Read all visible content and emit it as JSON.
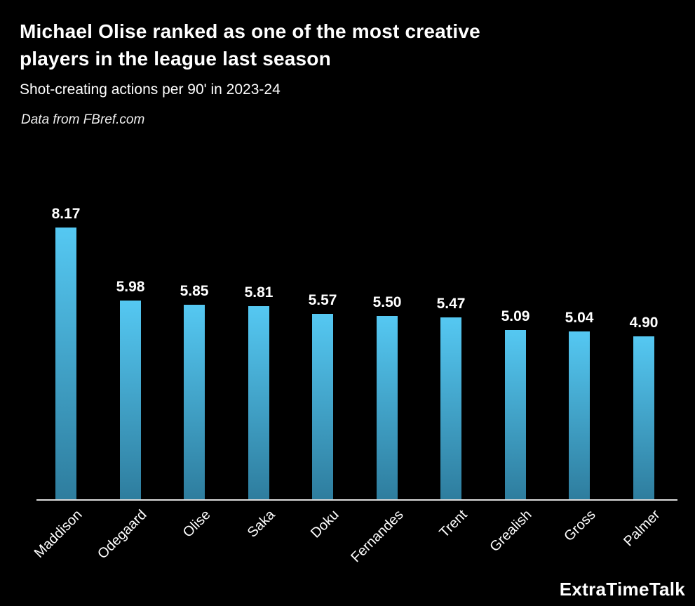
{
  "header": {
    "title_line1": "Michael Olise ranked as one of the most creative",
    "title_line2": "players in the league last season",
    "subtitle": "Shot-creating actions per 90' in 2023-24",
    "source": "Data from FBref.com"
  },
  "branding": {
    "label": "ExtraTimeTalk"
  },
  "colors": {
    "background": "#000000",
    "bar_gradient_top": "#55c8f2",
    "bar_gradient_bottom": "#2e7d9e",
    "axis_line": "#dcdcdc",
    "text": "#ffffff"
  },
  "chart_data": {
    "type": "bar",
    "title": "Michael Olise ranked as one of the most creative players in the league last season",
    "subtitle": "Shot-creating actions per 90' in 2023-24",
    "source": "Data from FBref.com",
    "categories": [
      "Maddison",
      "Odegaard",
      "Olise",
      "Saka",
      "Doku",
      "Fernandes",
      "Trent",
      "Grealish",
      "Gross",
      "Palmer"
    ],
    "values": [
      8.17,
      5.98,
      5.85,
      5.81,
      5.57,
      5.5,
      5.47,
      5.09,
      5.04,
      4.9
    ],
    "value_labels": [
      "8.17",
      "5.98",
      "5.85",
      "5.81",
      "5.57",
      "5.50",
      "5.47",
      "5.09",
      "5.04",
      "4.90"
    ],
    "xlabel": "",
    "ylabel": "",
    "ylim": [
      0,
      8.8
    ],
    "grid": false,
    "legend": null,
    "bar_label_position": "above",
    "tick_label_rotation_deg": 45
  }
}
